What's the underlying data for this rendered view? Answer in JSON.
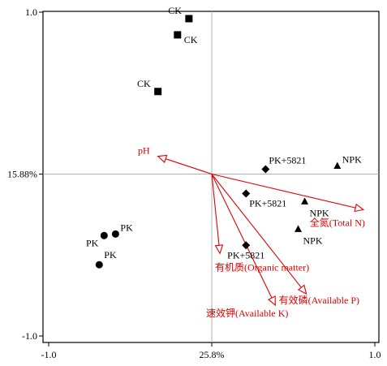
{
  "chart_data": {
    "type": "scatter",
    "subtype": "biplot-ordination",
    "x_axis": {
      "range": [
        -1.0,
        1.0
      ],
      "ticks": [
        "-1.0",
        "25.8%",
        "1.0"
      ],
      "tick_values": [
        -1.0,
        0.0,
        1.0
      ]
    },
    "y_axis": {
      "range": [
        -1.0,
        1.0
      ],
      "ticks": [
        "1.0",
        "15.88%",
        "-1.0"
      ],
      "tick_values": [
        1.0,
        0.0,
        -1.0
      ]
    },
    "grid": false,
    "zero_lines": true,
    "colors": {
      "points": "#000000",
      "arrows": "#e00000",
      "zero_lines": "#b0b0b0",
      "axes": "#000000"
    },
    "series": [
      {
        "marker": "square",
        "points": [
          {
            "x": -0.14,
            "y": 0.96,
            "label": "CK",
            "label_pos": "left"
          },
          {
            "x": -0.21,
            "y": 0.86,
            "label": "CK",
            "label_pos": "right"
          },
          {
            "x": -0.33,
            "y": 0.51,
            "label": "CK",
            "label_pos": "left"
          }
        ]
      },
      {
        "marker": "circle",
        "points": [
          {
            "x": -0.59,
            "y": -0.37,
            "label": "PK",
            "label_pos": "right"
          },
          {
            "x": -0.66,
            "y": -0.38,
            "label": "PK",
            "label_pos": "left"
          },
          {
            "x": -0.69,
            "y": -0.56,
            "label": "PK",
            "label_pos": "right"
          }
        ]
      },
      {
        "marker": "diamond",
        "points": [
          {
            "x": 0.33,
            "y": 0.03,
            "label": "PK+5821",
            "label_pos": "right"
          },
          {
            "x": 0.21,
            "y": -0.12,
            "label": "PK+5821",
            "label_pos": "right-below"
          },
          {
            "x": 0.21,
            "y": -0.44,
            "label": "PK+5821",
            "label_pos": "below"
          }
        ]
      },
      {
        "marker": "triangle",
        "points": [
          {
            "x": 0.77,
            "y": 0.05,
            "label": "NPK",
            "label_pos": "right"
          },
          {
            "x": 0.57,
            "y": -0.17,
            "label": "NPK",
            "label_pos": "below"
          },
          {
            "x": 0.53,
            "y": -0.34,
            "label": "NPK",
            "label_pos": "below"
          }
        ]
      }
    ],
    "vectors": [
      {
        "label": "pH",
        "x": -0.33,
        "y": 0.11
      },
      {
        "label": "全氮(Total  N)",
        "x": 0.93,
        "y": -0.22
      },
      {
        "label": "有机质(Organic  matter)",
        "x": 0.05,
        "y": -0.49
      },
      {
        "label": "有效磷(Available  P)",
        "x": 0.58,
        "y": -0.74
      },
      {
        "label": "速效钾(Available K)",
        "x": 0.39,
        "y": -0.81
      }
    ]
  }
}
